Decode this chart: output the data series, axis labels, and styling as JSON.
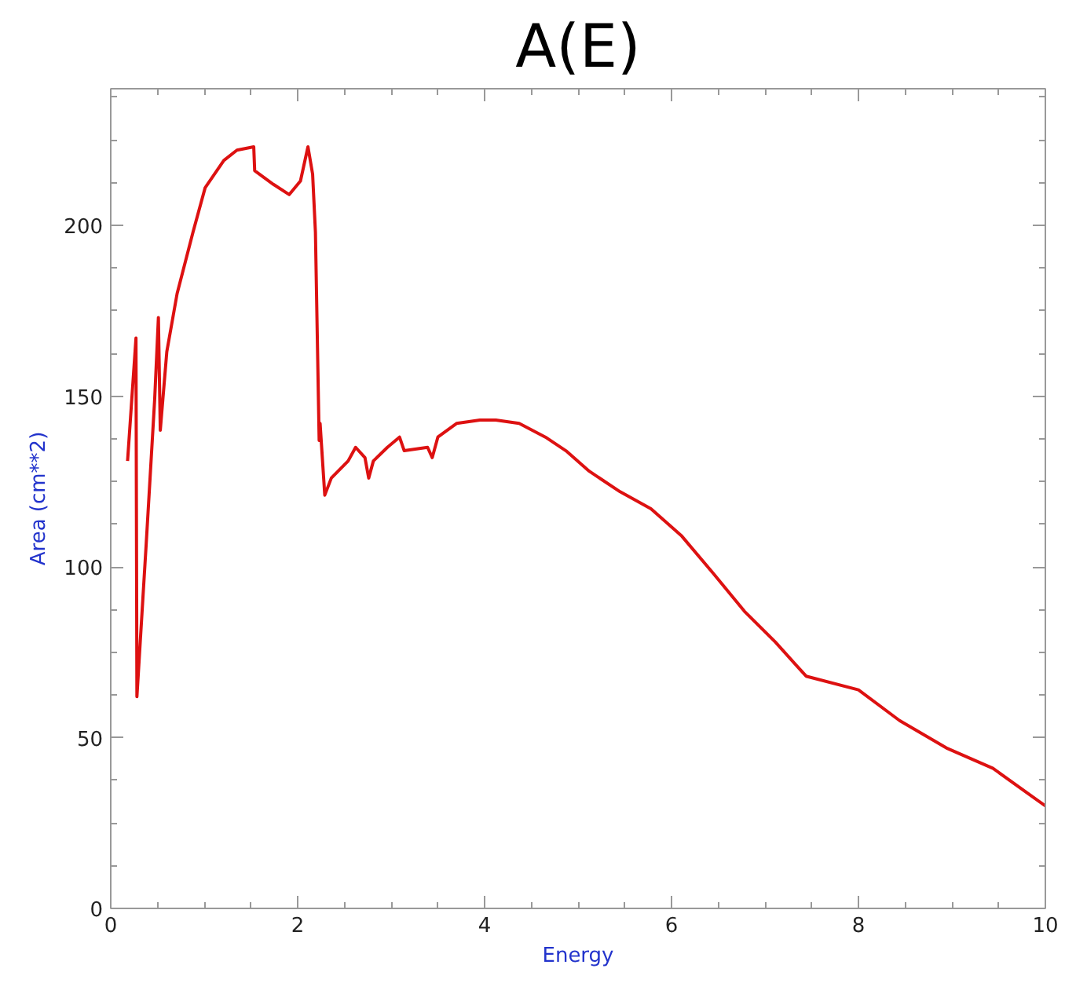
{
  "chart_data": {
    "type": "line",
    "title": "A(E)",
    "xlabel": "Energy",
    "ylabel": "Area (cm**2)",
    "x": [
      0.18,
      0.27,
      0.28,
      0.38,
      0.47,
      0.51,
      0.53,
      0.6,
      0.71,
      0.88,
      1.01,
      1.21,
      1.35,
      1.53,
      1.54,
      1.74,
      1.91,
      2.03,
      2.11,
      2.16,
      2.19,
      2.23,
      2.24,
      2.29,
      2.36,
      2.54,
      2.62,
      2.72,
      2.76,
      2.81,
      2.96,
      3.09,
      3.14,
      3.39,
      3.44,
      3.5,
      3.7,
      3.95,
      4.12,
      4.37,
      4.65,
      4.87,
      5.12,
      5.45,
      5.78,
      6.11,
      6.45,
      6.78,
      7.11,
      7.44,
      8.0,
      8.44,
      8.94,
      9.44,
      10.0
    ],
    "series": [
      {
        "color": "#dd1111",
        "values": [
          131,
          167,
          62,
          107,
          149,
          173,
          140,
          163,
          180,
          198,
          211,
          219,
          222,
          223,
          216,
          212,
          209,
          213,
          223,
          215,
          198,
          137,
          142,
          121,
          126,
          131,
          135,
          132,
          126,
          131,
          135,
          138,
          134,
          135,
          132,
          138,
          142,
          143,
          143,
          142,
          138,
          134,
          128,
          122,
          117,
          109,
          98,
          87,
          78,
          68,
          64,
          55,
          47,
          41,
          30
        ]
      }
    ],
    "xlim": [
      0,
      10
    ],
    "ylim": [
      0,
      240
    ],
    "xticks": [
      0,
      2,
      4,
      6,
      8,
      10
    ],
    "yticks": [
      0,
      50,
      100,
      150,
      200
    ],
    "line_style": "solid"
  }
}
